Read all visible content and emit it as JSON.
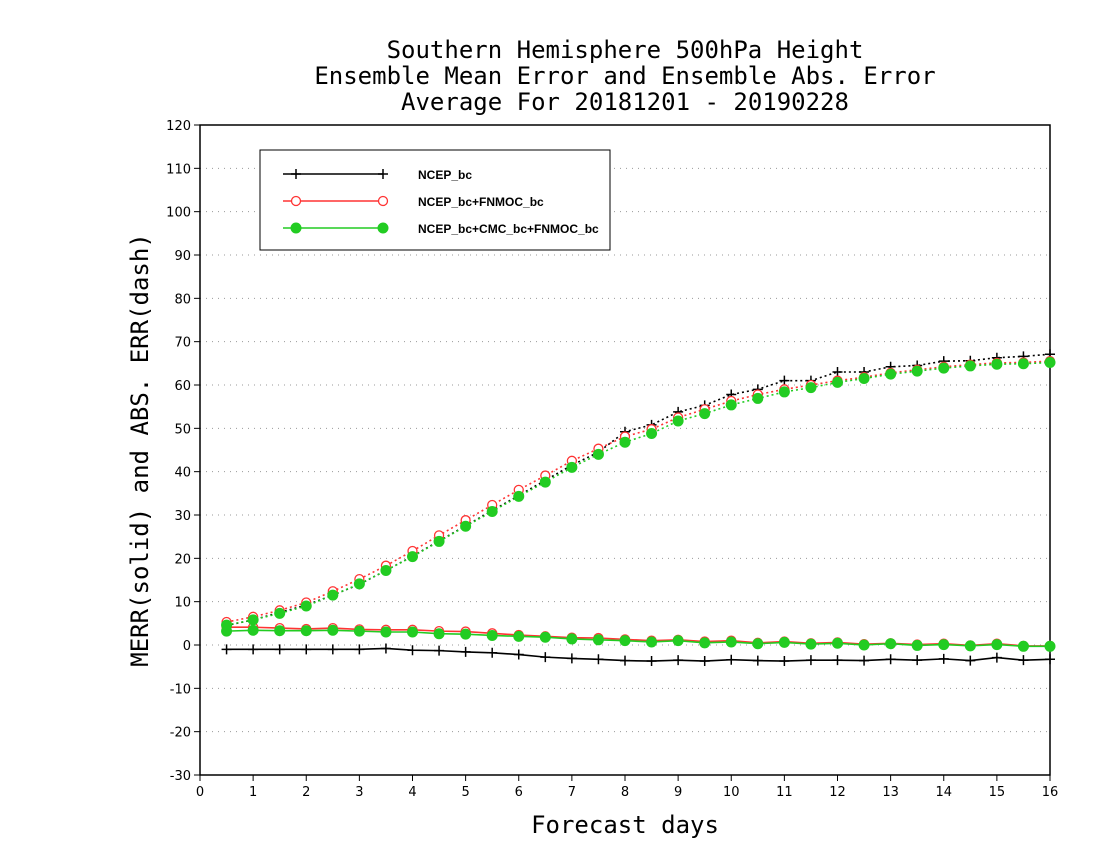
{
  "chart_data": {
    "type": "line",
    "title_lines": [
      "Southern Hemisphere 500hPa Height",
      "Ensemble Mean Error and Ensemble Abs. Error",
      "Average For 20181201 - 20190228"
    ],
    "xlabel": "Forecast days",
    "ylabel": "MERR(solid) and ABS. ERR(dash)",
    "xlim": [
      0,
      16
    ],
    "ylim": [
      -30,
      120
    ],
    "xticks": [
      0,
      1,
      2,
      3,
      4,
      5,
      6,
      7,
      8,
      9,
      10,
      11,
      12,
      13,
      14,
      15,
      16
    ],
    "yticks": [
      -30,
      -20,
      -10,
      0,
      10,
      20,
      30,
      40,
      50,
      60,
      70,
      80,
      90,
      100,
      110,
      120
    ],
    "grid": "horizontal-dotted",
    "legend_position": "top-left",
    "x": [
      0.5,
      1,
      1.5,
      2,
      2.5,
      3,
      3.5,
      4,
      4.5,
      5,
      5.5,
      6,
      6.5,
      7,
      7.5,
      8,
      8.5,
      9,
      9.5,
      10,
      10.5,
      11,
      11.5,
      12,
      12.5,
      13,
      13.5,
      14,
      14.5,
      15,
      15.5,
      16
    ],
    "series": [
      {
        "name": "NCEP_bc",
        "color": "#000000",
        "marker": "plus",
        "merr": [
          -1,
          -1,
          -1,
          -1,
          -1,
          -1,
          -0.8,
          -1.2,
          -1.3,
          -1.6,
          -1.8,
          -2.2,
          -2.8,
          -3.1,
          -3.3,
          -3.6,
          -3.7,
          -3.5,
          -3.7,
          -3.4,
          -3.6,
          -3.7,
          -3.5,
          -3.5,
          -3.6,
          -3.3,
          -3.5,
          -3.2,
          -3.6,
          -2.9,
          -3.5,
          -3.3
        ],
        "abs_err": [
          4.5,
          5.8,
          7.5,
          9.2,
          11.5,
          14,
          17.2,
          20.5,
          24,
          27.5,
          31,
          34.5,
          38,
          41.5,
          44.5,
          49.2,
          50.8,
          53.8,
          55.3,
          57.8,
          59,
          61,
          61,
          63,
          63,
          64.2,
          64.5,
          65.5,
          65.6,
          66.3,
          66.6,
          67.1
        ]
      },
      {
        "name": "NCEP_bc+FNMOC_bc",
        "color": "#ff3333",
        "marker": "open-circle",
        "merr": [
          4.1,
          4.1,
          3.9,
          3.7,
          3.9,
          3.6,
          3.5,
          3.5,
          3.2,
          3.1,
          2.7,
          2.3,
          2.0,
          1.7,
          1.6,
          1.3,
          1.0,
          1.2,
          0.8,
          1.0,
          0.5,
          0.8,
          0.4,
          0.6,
          0.2,
          0.4,
          0.1,
          0.3,
          -0.1,
          0.3,
          -0.2,
          -0.2
        ],
        "abs_err": [
          5.3,
          6.5,
          8,
          9.8,
          12.4,
          15.2,
          18.3,
          21.7,
          25.3,
          28.8,
          32.3,
          35.8,
          39.1,
          42.5,
          45.3,
          48.1,
          49.8,
          52.5,
          54.4,
          56.3,
          57.8,
          59,
          60,
          61,
          61.8,
          62.8,
          63.5,
          64.2,
          64.7,
          65.1,
          65.2,
          65.5
        ]
      },
      {
        "name": "NCEP_bc+CMC_bc+FNMOC_bc",
        "color": "#22cc22",
        "marker": "filled-circle",
        "merr": [
          3.2,
          3.4,
          3.3,
          3.3,
          3.4,
          3.2,
          3.0,
          3.0,
          2.6,
          2.5,
          2.2,
          2.0,
          1.8,
          1.4,
          1.2,
          1.0,
          0.7,
          1.0,
          0.5,
          0.7,
          0.3,
          0.6,
          0.2,
          0.4,
          0.0,
          0.3,
          -0.1,
          0.1,
          -0.2,
          0.1,
          -0.3,
          -0.3
        ],
        "abs_err": [
          4.6,
          5.8,
          7.3,
          9,
          11.5,
          14.1,
          17.2,
          20.4,
          23.9,
          27.4,
          30.8,
          34.3,
          37.6,
          41,
          44,
          46.8,
          48.8,
          51.7,
          53.4,
          55.4,
          56.9,
          58.4,
          59.4,
          60.6,
          61.5,
          62.5,
          63.2,
          63.9,
          64.4,
          64.8,
          64.9,
          65.2
        ]
      }
    ]
  }
}
